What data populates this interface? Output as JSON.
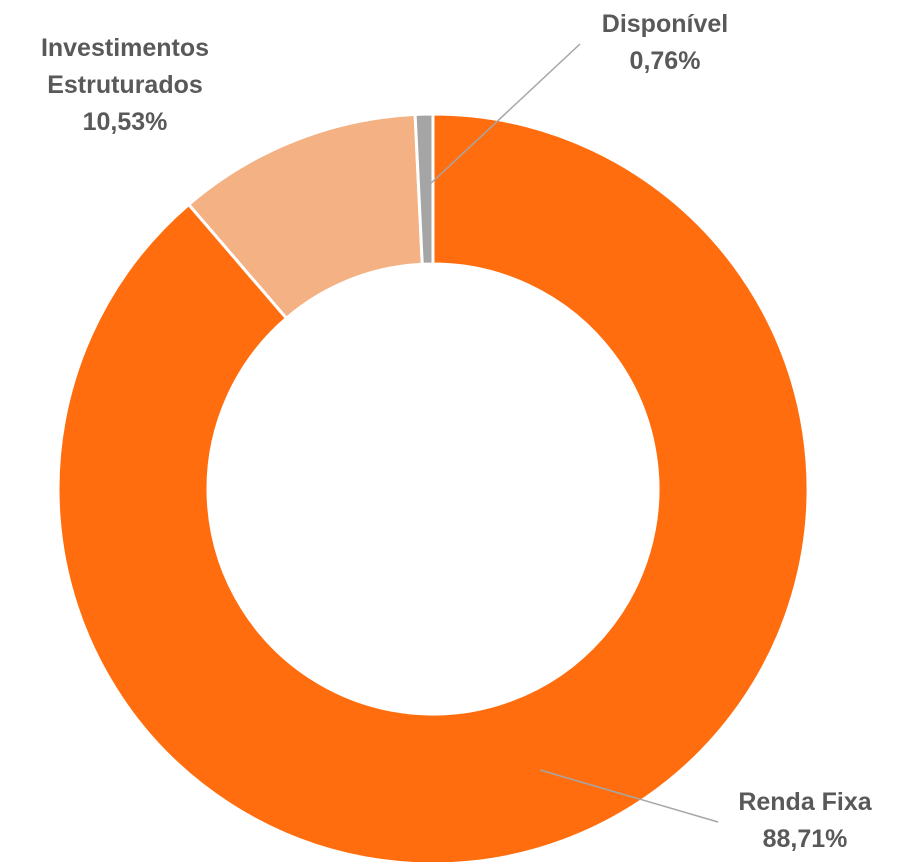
{
  "chart_data": {
    "type": "pie",
    "categories": [
      "Renda Fixa",
      "Investimentos Estruturados",
      "Disponível"
    ],
    "values": [
      88.71,
      10.53,
      0.76
    ],
    "value_labels": [
      "88,71%",
      "10,53%",
      "0,76%"
    ],
    "colors": [
      "#ff6d0e",
      "#f4b183",
      "#a5a5a5"
    ]
  }
}
